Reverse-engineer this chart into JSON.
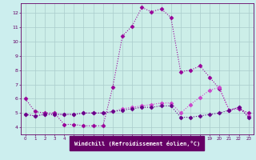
{
  "background_color": "#cceeee",
  "plot_bg_color": "#cceee8",
  "grid_color": "#aacccc",
  "xlabel": "Windchill (Refroidissement éolien,°C)",
  "xlim": [
    -0.5,
    23.5
  ],
  "ylim": [
    3.5,
    12.7
  ],
  "yticks": [
    4,
    5,
    6,
    7,
    8,
    9,
    10,
    11,
    12
  ],
  "xticks": [
    0,
    1,
    2,
    3,
    4,
    5,
    6,
    7,
    8,
    9,
    10,
    11,
    12,
    13,
    14,
    15,
    16,
    17,
    18,
    19,
    20,
    21,
    22,
    23
  ],
  "xlabel_bg": "#660066",
  "xlabel_fg": "#ffffff",
  "series": [
    {
      "x": [
        0,
        1,
        2,
        3,
        4,
        5,
        6,
        7,
        8,
        9,
        10,
        11,
        12,
        13,
        14,
        15,
        16,
        17,
        18,
        19,
        20,
        21,
        22,
        23
      ],
      "y": [
        6.0,
        5.1,
        5.0,
        5.0,
        4.2,
        4.2,
        4.1,
        4.1,
        4.1,
        6.8,
        10.4,
        11.1,
        12.4,
        12.1,
        12.3,
        11.7,
        7.9,
        8.0,
        8.3,
        7.5,
        6.7,
        5.2,
        5.3,
        5.0
      ],
      "color": "#990099",
      "linewidth": 0.8,
      "markersize": 2.5
    },
    {
      "x": [
        0,
        1,
        2,
        3,
        4,
        5,
        6,
        7,
        8,
        9,
        10,
        11,
        12,
        13,
        14,
        15,
        16,
        17,
        18,
        19,
        20,
        21,
        22,
        23
      ],
      "y": [
        4.9,
        4.8,
        4.9,
        4.9,
        4.9,
        4.9,
        5.0,
        5.0,
        5.0,
        5.1,
        5.3,
        5.4,
        5.5,
        5.6,
        5.7,
        5.7,
        5.0,
        5.6,
        6.1,
        6.6,
        6.8,
        5.2,
        5.4,
        4.8
      ],
      "color": "#cc44cc",
      "linewidth": 0.8,
      "markersize": 2.5
    },
    {
      "x": [
        0,
        1,
        2,
        3,
        4,
        5,
        6,
        7,
        8,
        9,
        10,
        11,
        12,
        13,
        14,
        15,
        16,
        17,
        18,
        19,
        20,
        21,
        22,
        23
      ],
      "y": [
        4.9,
        4.8,
        4.9,
        4.9,
        4.9,
        4.9,
        5.0,
        5.0,
        5.0,
        5.1,
        5.2,
        5.3,
        5.4,
        5.4,
        5.5,
        5.5,
        4.7,
        4.7,
        4.8,
        4.9,
        5.0,
        5.2,
        5.4,
        4.7
      ],
      "color": "#660088",
      "linewidth": 0.8,
      "markersize": 2.5
    }
  ]
}
